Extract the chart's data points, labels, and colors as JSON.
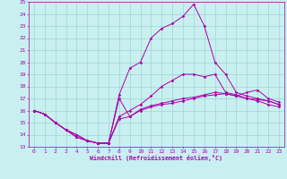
{
  "xlabel": "Windchill (Refroidissement éolien,°C)",
  "xlim": [
    -0.5,
    23.5
  ],
  "ylim": [
    13,
    25
  ],
  "yticks": [
    13,
    14,
    15,
    16,
    17,
    18,
    19,
    20,
    21,
    22,
    23,
    24,
    25
  ],
  "xticks": [
    0,
    1,
    2,
    3,
    4,
    5,
    6,
    7,
    8,
    9,
    10,
    11,
    12,
    13,
    14,
    15,
    16,
    17,
    18,
    19,
    20,
    21,
    22,
    23
  ],
  "bg_color": "#c8f0f0",
  "line_color": "#aa00aa",
  "grid_color": "#99cccc",
  "lines": [
    [
      16.0,
      15.7,
      15.0,
      14.4,
      13.8,
      13.5,
      13.3,
      13.3,
      15.3,
      15.5,
      16.0,
      16.3,
      16.5,
      16.6,
      16.8,
      17.0,
      17.2,
      17.3,
      17.4,
      17.2,
      17.0,
      16.9,
      16.8,
      16.5
    ],
    [
      16.0,
      15.7,
      15.0,
      14.4,
      13.8,
      13.5,
      13.3,
      13.3,
      17.0,
      15.5,
      16.1,
      16.4,
      16.6,
      16.8,
      17.0,
      17.1,
      17.3,
      17.5,
      17.4,
      17.2,
      17.5,
      17.7,
      17.0,
      16.7
    ],
    [
      16.0,
      15.7,
      15.0,
      14.4,
      14.0,
      13.5,
      13.3,
      13.3,
      15.5,
      16.0,
      16.5,
      17.2,
      18.0,
      18.5,
      19.0,
      19.0,
      18.8,
      19.0,
      17.5,
      17.3,
      17.0,
      16.8,
      16.5,
      16.3
    ],
    [
      16.0,
      15.7,
      15.0,
      14.4,
      14.0,
      13.5,
      13.3,
      13.3,
      17.3,
      19.5,
      20.0,
      22.0,
      22.8,
      23.2,
      23.8,
      24.8,
      23.0,
      20.0,
      19.0,
      17.5,
      17.2,
      17.0,
      16.8,
      16.5
    ]
  ]
}
